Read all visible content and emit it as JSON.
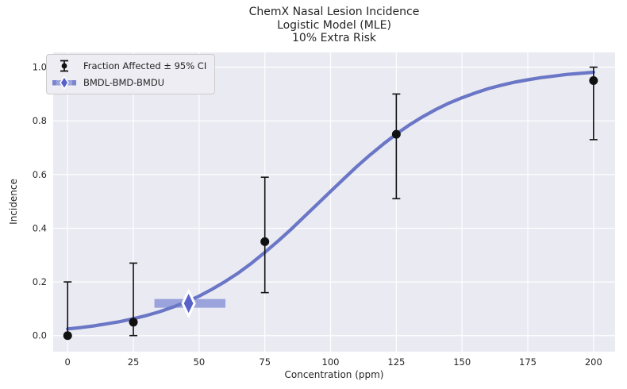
{
  "chart_data": {
    "type": "scatter+line",
    "title_lines": [
      "ChemX Nasal Lesion Incidence",
      "Logistic Model (MLE)",
      "10% Extra Risk"
    ],
    "xlabel": "Concentration (ppm)",
    "ylabel": "Incidence",
    "xlim": [
      -5.5,
      208.2
    ],
    "ylim": [
      -0.06,
      1.055
    ],
    "grid": true,
    "x_tick_values": [
      0,
      25,
      50,
      75,
      100,
      125,
      150,
      175,
      200
    ],
    "x_tick_labels": [
      "0",
      "25",
      "50",
      "75",
      "100",
      "125",
      "150",
      "175",
      "200"
    ],
    "y_tick_values": [
      0.0,
      0.2,
      0.4,
      0.6,
      0.8,
      1.0
    ],
    "y_tick_labels": [
      "0.0",
      "0.2",
      "0.4",
      "0.6",
      "0.8",
      "1.0"
    ],
    "legend": [
      {
        "label": "Fraction Affected ± 95% CI",
        "marker": "errorbar"
      },
      {
        "label": "BMDL-BMD-BMDU",
        "marker": "bmd-interval"
      }
    ],
    "legend_position": "upper-left",
    "points": [
      {
        "x": 0,
        "y": 0.0,
        "ci_low": 0.0,
        "ci_high": 0.2
      },
      {
        "x": 25,
        "y": 0.05,
        "ci_low": 0.0,
        "ci_high": 0.27
      },
      {
        "x": 75,
        "y": 0.35,
        "ci_low": 0.16,
        "ci_high": 0.59
      },
      {
        "x": 125,
        "y": 0.75,
        "ci_low": 0.51,
        "ci_high": 0.9
      },
      {
        "x": 200,
        "y": 0.95,
        "ci_low": 0.73,
        "ci_high": 1.0
      }
    ],
    "bmd": {
      "bmdl": 33,
      "bmd": 46,
      "bmdu": 60,
      "response": 0.12
    },
    "curve": [
      [
        0,
        0.025
      ],
      [
        5,
        0.03
      ],
      [
        10,
        0.036
      ],
      [
        15,
        0.044
      ],
      [
        20,
        0.052
      ],
      [
        25,
        0.063
      ],
      [
        30,
        0.075
      ],
      [
        35,
        0.089
      ],
      [
        40,
        0.106
      ],
      [
        45,
        0.125
      ],
      [
        50,
        0.147
      ],
      [
        55,
        0.173
      ],
      [
        60,
        0.202
      ],
      [
        65,
        0.234
      ],
      [
        70,
        0.27
      ],
      [
        75,
        0.31
      ],
      [
        80,
        0.352
      ],
      [
        85,
        0.396
      ],
      [
        90,
        0.443
      ],
      [
        95,
        0.49
      ],
      [
        100,
        0.537
      ],
      [
        105,
        0.584
      ],
      [
        110,
        0.63
      ],
      [
        115,
        0.673
      ],
      [
        120,
        0.713
      ],
      [
        125,
        0.751
      ],
      [
        130,
        0.785
      ],
      [
        135,
        0.815
      ],
      [
        140,
        0.842
      ],
      [
        145,
        0.866
      ],
      [
        150,
        0.886
      ],
      [
        155,
        0.904
      ],
      [
        160,
        0.92
      ],
      [
        165,
        0.933
      ],
      [
        170,
        0.944
      ],
      [
        175,
        0.953
      ],
      [
        180,
        0.961
      ],
      [
        185,
        0.967
      ],
      [
        190,
        0.973
      ],
      [
        195,
        0.977
      ],
      [
        200,
        0.981
      ]
    ],
    "colors": {
      "plot_bg": "#eaeaf2",
      "grid": "#ffffff",
      "curve": "#6a76c6",
      "bmd_bar": "#9aa3dc",
      "bmd_bar_end": "#7c86cf",
      "bmd_diamond": "#5763c9",
      "point": "#111111",
      "text": "#262626",
      "legend_bg": "#ededf3",
      "legend_border": "#cccccc"
    }
  }
}
